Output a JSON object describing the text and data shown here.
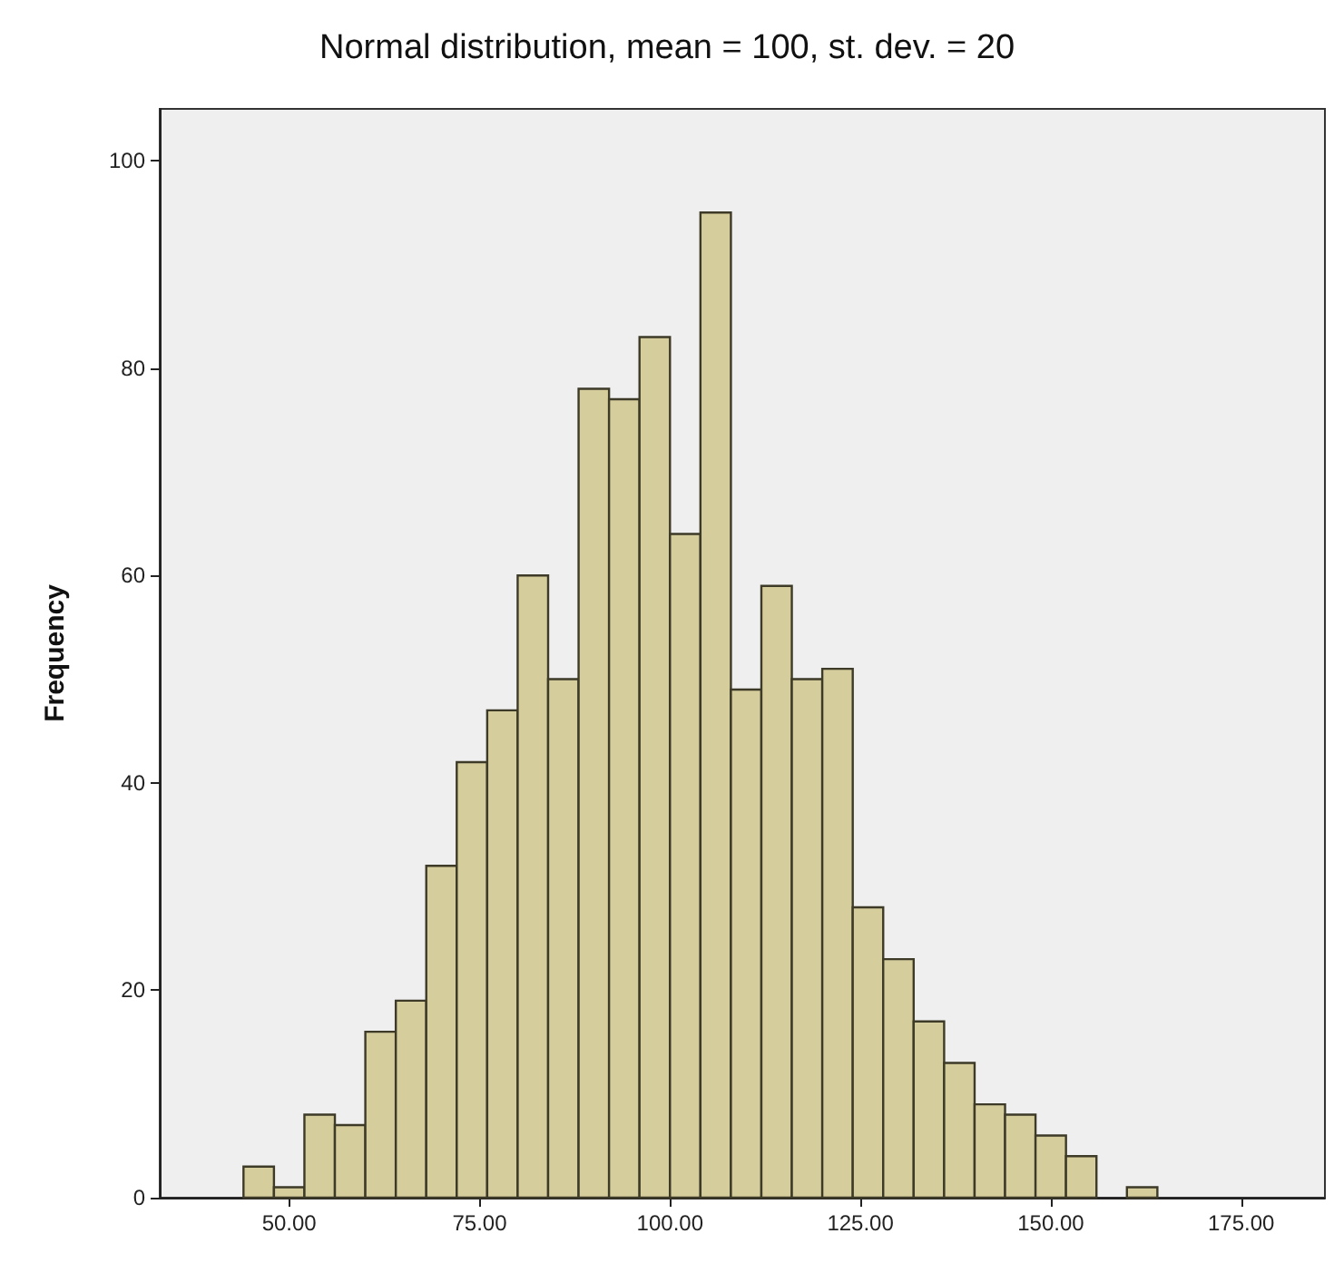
{
  "chart_data": {
    "type": "histogram",
    "title": "Normal distribution, mean = 100, st. dev. = 20",
    "ylabel": "Frequency",
    "bins": [
      44,
      48,
      52,
      56,
      60,
      64,
      68,
      72,
      76,
      80,
      84,
      88,
      92,
      96,
      100,
      104,
      108,
      112,
      116,
      120,
      124,
      128,
      132,
      136,
      140,
      144,
      148,
      152,
      156,
      160,
      164
    ],
    "values": [
      3,
      1,
      8,
      7,
      16,
      19,
      32,
      42,
      47,
      60,
      50,
      78,
      77,
      83,
      64,
      95,
      49,
      59,
      50,
      51,
      28,
      23,
      17,
      13,
      9,
      8,
      6,
      4,
      0,
      1
    ],
    "color": "#d6cd9c",
    "xlim": [
      33,
      186
    ],
    "ylim": [
      0,
      105
    ],
    "xticks": [
      {
        "value": 50,
        "label": "50.00"
      },
      {
        "value": 75,
        "label": "75.00"
      },
      {
        "value": 100,
        "label": "100.00"
      },
      {
        "value": 125,
        "label": "125.00"
      },
      {
        "value": 150,
        "label": "150.00"
      },
      {
        "value": 175,
        "label": "175.00"
      }
    ],
    "yticks": [
      0,
      20,
      40,
      60,
      80,
      100
    ],
    "grid": false
  }
}
